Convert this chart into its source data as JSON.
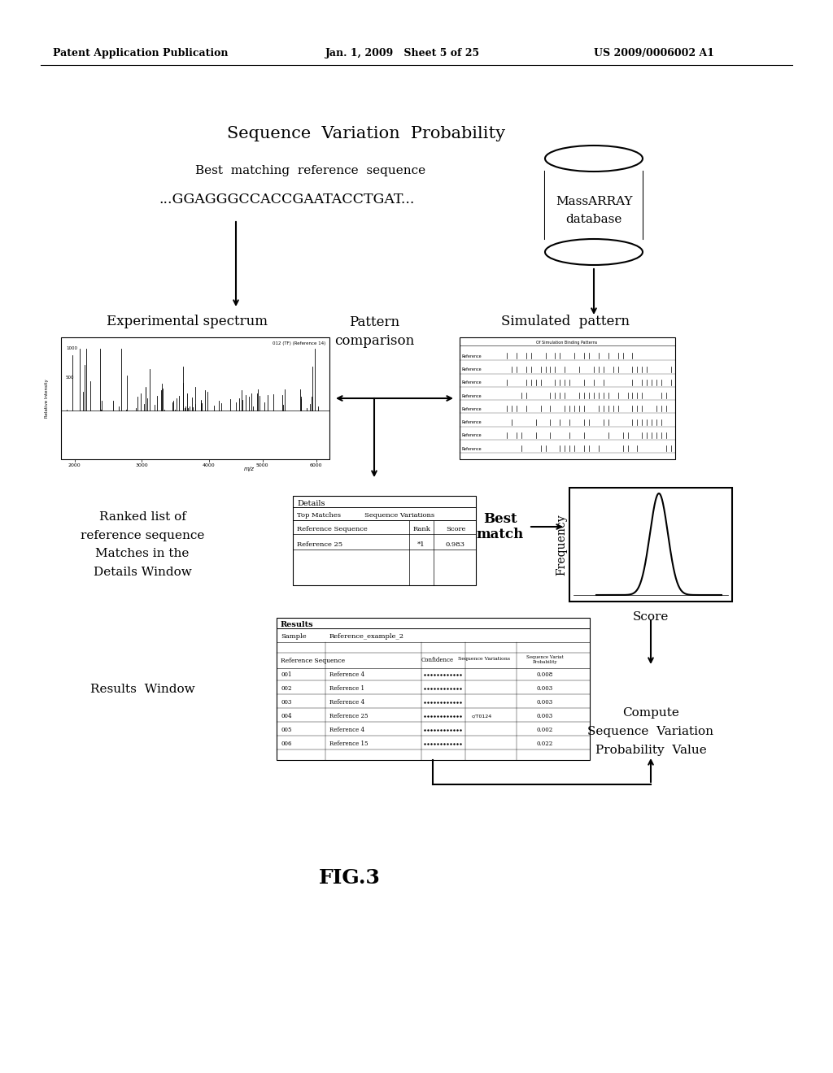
{
  "bg_color": "#ffffff",
  "header_left": "Patent Application Publication",
  "header_mid": "Jan. 1, 2009   Sheet 5 of 25",
  "header_right": "US 2009/0006002 A1",
  "title": "Sequence  Variation  Probability",
  "best_match_label": "Best  matching  reference  sequence",
  "sequence_text": "...GGAGGGCCACCGAATACCTGAT...",
  "massarray_label1": "MassARRAY",
  "massarray_label2": "database",
  "exp_spectrum_label": "Experimental spectrum",
  "pattern_comparison_label": "Pattern\ncomparison",
  "simulated_pattern_label": "Simulated  pattern",
  "ranked_list_label": "Ranked list of\nreference sequence\nMatches in the\nDetails Window",
  "best_match_label2": "Best\nmatch",
  "frequency_label": "Frequency",
  "score_label": "Score",
  "results_window_label": "Results  Window",
  "compute_label": "Compute\nSequence  Variation\nProbability  Value",
  "fig_label": "FIG.3",
  "details_title": "Details",
  "tab1": "Top Matches",
  "tab2": "Sequence Variations",
  "col_ref_seq": "Reference Sequence",
  "col_rank": "Rank",
  "col_score": "Score",
  "data_ref": "Reference 25",
  "data_rank": "*1",
  "data_score": "0.983",
  "results_title": "Results",
  "results_sample_label": "Sample",
  "results_sample_value": "Reference_example_2",
  "results_col1": "Reference Sequence",
  "results_col2": "Confidence",
  "results_col3": "Sequence Variations",
  "results_col4": "Sequence Variat\nProbability",
  "results_rows": [
    [
      "001",
      "Reference 4",
      "0.008"
    ],
    [
      "002",
      "Reference 1",
      "0.003"
    ],
    [
      "003",
      "Reference 4",
      "0.003"
    ],
    [
      "004",
      "Reference 25",
      "0.003"
    ],
    [
      "005",
      "Reference 4",
      "0.002"
    ],
    [
      "006",
      "Reference 15",
      "0.022"
    ]
  ],
  "results_row4_extra": "c/T0124",
  "spectrum_annotation": "012 (TF) (Reference 14)",
  "spec_xticks": [
    "2000",
    "3000",
    "4000",
    "5000",
    "6000"
  ],
  "spec_ylabel1": "1000",
  "spec_ylabel2": "500",
  "spec_ylabel_label": "Relative Intensity",
  "mz_label": "m/z",
  "sim_header": "Of Simulation Binding Patterns",
  "sim_rows": [
    "Reference",
    "Reference",
    "Reference",
    "Reference",
    "Reference",
    "Reference",
    "Reference",
    "Reference"
  ]
}
